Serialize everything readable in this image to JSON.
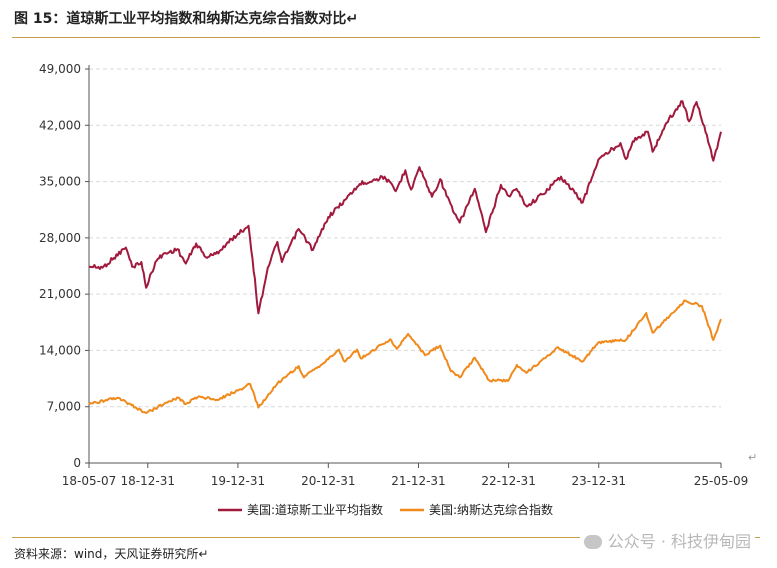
{
  "header": {
    "title": "图 15：道琼斯工业平均指数和纳斯达克综合指数对比↵"
  },
  "footer": {
    "source": "资料来源：wind，天风证券研究所↵",
    "watermark": "公众号 · 科技伊甸园"
  },
  "colors": {
    "accent_rule": "#c8a04a",
    "dow": "#a11a3d",
    "nasdaq": "#f08a1c",
    "grid": "#d9d9d9"
  },
  "chart_data": {
    "type": "line",
    "title": "",
    "xlabel": "",
    "ylabel": "",
    "x_axis": {
      "min": "2018-05-07",
      "max": "2025-05-09",
      "ticks": [
        {
          "date": "2018-05-07",
          "label": "18-05-07"
        },
        {
          "date": "2018-12-31",
          "label": "18-12-31"
        },
        {
          "date": "2019-12-31",
          "label": "19-12-31"
        },
        {
          "date": "2020-12-31",
          "label": "20-12-31"
        },
        {
          "date": "2021-12-31",
          "label": "21-12-31"
        },
        {
          "date": "2022-12-31",
          "label": "22-12-31"
        },
        {
          "date": "2023-12-31",
          "label": "23-12-31"
        },
        {
          "date": "2025-05-09",
          "label": "25-05-09"
        }
      ]
    },
    "y_axis": {
      "min": 0,
      "max": 49000,
      "ticks": [
        0,
        7000,
        14000,
        21000,
        28000,
        35000,
        42000,
        49000
      ],
      "tick_labels": [
        "0",
        "7,000",
        "14,000",
        "21,000",
        "28,000",
        "35,000",
        "42,000",
        "49,000"
      ]
    },
    "grid": "horizontal dashed",
    "legend_position": "bottom",
    "series": [
      {
        "name": "美国:道琼斯工业平均指数",
        "color": "#a11a3d",
        "points": [
          [
            "2018-05-07",
            24400
          ],
          [
            "2018-07-01",
            24300
          ],
          [
            "2018-08-15",
            25500
          ],
          [
            "2018-10-03",
            26800
          ],
          [
            "2018-10-29",
            24400
          ],
          [
            "2018-12-05",
            25000
          ],
          [
            "2018-12-24",
            21800
          ],
          [
            "2019-01-31",
            25000
          ],
          [
            "2019-03-01",
            25900
          ],
          [
            "2019-04-30",
            26600
          ],
          [
            "2019-06-03",
            24800
          ],
          [
            "2019-07-15",
            27300
          ],
          [
            "2019-08-23",
            25600
          ],
          [
            "2019-10-02",
            26000
          ],
          [
            "2019-12-31",
            28500
          ],
          [
            "2020-02-12",
            29500
          ],
          [
            "2020-02-28",
            25400
          ],
          [
            "2020-03-23",
            18600
          ],
          [
            "2020-04-30",
            24300
          ],
          [
            "2020-06-08",
            27500
          ],
          [
            "2020-06-26",
            25000
          ],
          [
            "2020-09-02",
            29100
          ],
          [
            "2020-10-30",
            26500
          ],
          [
            "2020-12-31",
            30600
          ],
          [
            "2021-03-15",
            32900
          ],
          [
            "2021-05-07",
            34700
          ],
          [
            "2021-08-16",
            35600
          ],
          [
            "2021-09-30",
            33800
          ],
          [
            "2021-11-08",
            36400
          ],
          [
            "2021-12-01",
            34000
          ],
          [
            "2022-01-04",
            36800
          ],
          [
            "2022-02-24",
            33100
          ],
          [
            "2022-03-29",
            35300
          ],
          [
            "2022-05-20",
            31300
          ],
          [
            "2022-06-16",
            29900
          ],
          [
            "2022-08-16",
            34100
          ],
          [
            "2022-09-30",
            28700
          ],
          [
            "2022-11-30",
            34600
          ],
          [
            "2022-12-31",
            33200
          ],
          [
            "2023-02-01",
            34100
          ],
          [
            "2023-03-15",
            31900
          ],
          [
            "2023-05-15",
            33400
          ],
          [
            "2023-07-31",
            35600
          ],
          [
            "2023-10-27",
            32400
          ],
          [
            "2023-12-29",
            37700
          ],
          [
            "2024-03-28",
            39800
          ],
          [
            "2024-04-19",
            37800
          ],
          [
            "2024-05-17",
            40000
          ],
          [
            "2024-07-17",
            41200
          ],
          [
            "2024-08-05",
            38700
          ],
          [
            "2024-09-30",
            42300
          ],
          [
            "2024-12-04",
            45000
          ],
          [
            "2024-12-31",
            42500
          ],
          [
            "2025-01-30",
            44900
          ],
          [
            "2025-03-13",
            40800
          ],
          [
            "2025-04-08",
            37600
          ],
          [
            "2025-05-09",
            41200
          ]
        ]
      },
      {
        "name": "美国:纳斯达克综合指数",
        "color": "#f08a1c",
        "points": [
          [
            "2018-05-07",
            7300
          ],
          [
            "2018-07-20",
            7800
          ],
          [
            "2018-08-29",
            8100
          ],
          [
            "2018-10-26",
            7200
          ],
          [
            "2018-12-24",
            6200
          ],
          [
            "2019-03-29",
            7700
          ],
          [
            "2019-05-03",
            8150
          ],
          [
            "2019-06-03",
            7350
          ],
          [
            "2019-07-26",
            8300
          ],
          [
            "2019-10-02",
            7800
          ],
          [
            "2019-12-31",
            9000
          ],
          [
            "2020-02-19",
            9800
          ],
          [
            "2020-03-23",
            6900
          ],
          [
            "2020-06-08",
            9900
          ],
          [
            "2020-09-02",
            12050
          ],
          [
            "2020-09-23",
            10630
          ],
          [
            "2020-12-31",
            12900
          ],
          [
            "2021-02-12",
            14100
          ],
          [
            "2021-03-08",
            12600
          ],
          [
            "2021-04-26",
            14100
          ],
          [
            "2021-05-12",
            13000
          ],
          [
            "2021-09-07",
            15400
          ],
          [
            "2021-10-04",
            14200
          ],
          [
            "2021-11-19",
            16050
          ],
          [
            "2022-01-27",
            13400
          ],
          [
            "2022-03-29",
            14600
          ],
          [
            "2022-05-11",
            11400
          ],
          [
            "2022-06-16",
            10650
          ],
          [
            "2022-08-16",
            13100
          ],
          [
            "2022-10-13",
            10300
          ],
          [
            "2022-12-28",
            10200
          ],
          [
            "2023-02-02",
            12200
          ],
          [
            "2023-03-13",
            11200
          ],
          [
            "2023-07-19",
            14400
          ],
          [
            "2023-10-26",
            12600
          ],
          [
            "2023-12-29",
            15000
          ],
          [
            "2024-04-19",
            15300
          ],
          [
            "2024-07-10",
            18650
          ],
          [
            "2024-08-05",
            16200
          ],
          [
            "2024-12-16",
            20200
          ],
          [
            "2025-02-21",
            19500
          ],
          [
            "2025-04-08",
            15300
          ],
          [
            "2025-05-09",
            17900
          ]
        ]
      }
    ]
  }
}
